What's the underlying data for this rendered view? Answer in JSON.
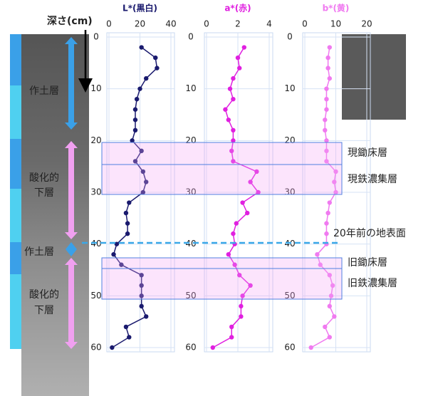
{
  "depth_label": "深さ(cm)",
  "left_labels": [
    "作土層",
    "酸化的",
    "下層",
    "作土層",
    "酸化的",
    "下層"
  ],
  "right_labels": [
    "現鋤床層",
    "現鉄濃集層",
    "20年前の地表面",
    "旧鋤床層",
    "旧鉄濃集層"
  ],
  "chart_data": [
    {
      "type": "line",
      "title": "L*(黒白)",
      "color": "#1a1a6e",
      "xlim": [
        0,
        40
      ],
      "xticks": [
        0,
        20,
        40
      ],
      "ylim": [
        0,
        60
      ],
      "yticks": [
        0,
        10,
        20,
        30,
        40,
        50,
        60
      ],
      "grid": true,
      "depth": [
        2,
        4,
        6,
        8,
        10,
        12,
        14,
        16,
        18,
        20,
        22,
        24,
        26,
        28,
        30,
        32,
        34,
        36,
        38,
        40,
        42,
        44,
        46,
        48,
        50,
        52,
        54,
        56,
        58,
        60
      ],
      "values": [
        21,
        30,
        31,
        24,
        20,
        18,
        17,
        17,
        17,
        15,
        21,
        17,
        22,
        24,
        22,
        13,
        11,
        12,
        12,
        5,
        3,
        8,
        21,
        21,
        21,
        21,
        24,
        11,
        13,
        2
      ]
    },
    {
      "type": "line",
      "title": "a*(赤)",
      "color": "#e020e0",
      "xlim": [
        0,
        4
      ],
      "xticks": [
        0,
        2,
        4
      ],
      "ylim": [
        0,
        60
      ],
      "yticks": [
        0,
        10,
        20,
        30,
        40,
        50,
        60
      ],
      "grid": true,
      "depth": [
        2,
        4,
        6,
        8,
        10,
        12,
        14,
        16,
        18,
        20,
        22,
        24,
        26,
        28,
        30,
        32,
        34,
        36,
        38,
        40,
        42,
        44,
        46,
        48,
        50,
        52,
        54,
        56,
        58,
        60
      ],
      "values": [
        2.4,
        2.0,
        2.1,
        1.7,
        1.5,
        1.7,
        1.2,
        1.4,
        1.7,
        1.7,
        1.6,
        1.7,
        3.2,
        2.8,
        3.3,
        2.3,
        2.6,
        1.9,
        1.7,
        1.8,
        1.4,
        1.8,
        2.1,
        2.8,
        2.3,
        2.2,
        2.2,
        1.6,
        1.6,
        0.4
      ]
    },
    {
      "type": "line",
      "title": "b*(黄)",
      "color": "#f07af0",
      "xlim": [
        0,
        20
      ],
      "xticks": [
        0,
        10,
        20
      ],
      "ylim": [
        0,
        60
      ],
      "yticks": [
        0,
        10,
        20,
        30,
        40,
        50,
        60
      ],
      "grid": true,
      "depth": [
        2,
        4,
        6,
        8,
        10,
        12,
        14,
        16,
        18,
        20,
        22,
        24,
        26,
        28,
        30,
        32,
        34,
        36,
        38,
        40,
        42,
        44,
        46,
        48,
        50,
        52,
        54,
        56,
        58,
        60
      ],
      "values": [
        8,
        7.5,
        7.5,
        8,
        7,
        7,
        7,
        6.5,
        6.5,
        7,
        7,
        7,
        10,
        9.5,
        10,
        8,
        7.5,
        7,
        7,
        7,
        4,
        5,
        8,
        9,
        8.5,
        8,
        9.5,
        6.5,
        8,
        2
      ]
    }
  ]
}
